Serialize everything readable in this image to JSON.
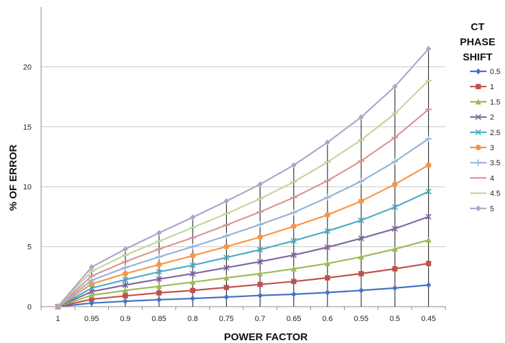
{
  "chart_data": {
    "type": "line",
    "xlabel": "POWER FACTOR",
    "ylabel": "% OF ERROR",
    "ylim": [
      0,
      25
    ],
    "yticks": [
      0,
      5,
      10,
      15,
      20
    ],
    "grid": "horizontal",
    "legend_position": "right",
    "legend_title": [
      "CT",
      "PHASE",
      "SHIFT"
    ],
    "categories": [
      "1",
      "0.95",
      "0.9",
      "0.85",
      "0.8",
      "0.75",
      "0.7",
      "0.65",
      "0.6",
      "0.55",
      "0.5",
      "0.45"
    ],
    "series": [
      {
        "name": "0.5",
        "color": "#4472C4",
        "marker": "diamond",
        "values": [
          0,
          0.3,
          0.45,
          0.58,
          0.68,
          0.8,
          0.93,
          1.03,
          1.18,
          1.35,
          1.55,
          1.8
        ]
      },
      {
        "name": "1",
        "color": "#C0504D",
        "marker": "square",
        "values": [
          0,
          0.62,
          0.9,
          1.15,
          1.35,
          1.6,
          1.85,
          2.1,
          2.4,
          2.75,
          3.15,
          3.6
        ]
      },
      {
        "name": "1.5",
        "color": "#9BBB59",
        "marker": "triangle",
        "values": [
          0,
          0.95,
          1.35,
          1.7,
          2.05,
          2.4,
          2.75,
          3.15,
          3.6,
          4.15,
          4.8,
          5.55
        ]
      },
      {
        "name": "2",
        "color": "#8064A2",
        "marker": "x",
        "values": [
          0,
          1.25,
          1.8,
          2.3,
          2.75,
          3.25,
          3.75,
          4.3,
          4.95,
          5.7,
          6.5,
          7.5
        ]
      },
      {
        "name": "2.5",
        "color": "#4BACC6",
        "marker": "x",
        "values": [
          0,
          1.55,
          2.25,
          2.9,
          3.45,
          4.1,
          4.75,
          5.5,
          6.3,
          7.2,
          8.3,
          9.6
        ]
      },
      {
        "name": "3",
        "color": "#F79646",
        "marker": "circle",
        "values": [
          0,
          1.9,
          2.75,
          3.5,
          4.25,
          5.0,
          5.8,
          6.7,
          7.65,
          8.8,
          10.2,
          11.8
        ]
      },
      {
        "name": "3.5",
        "color": "#95B3D7",
        "marker": "plus",
        "values": [
          0,
          2.2,
          3.25,
          4.15,
          5.0,
          5.9,
          6.85,
          7.85,
          9.1,
          10.45,
          12.1,
          14.0
        ]
      },
      {
        "name": "4",
        "color": "#D99694",
        "marker": "dash",
        "values": [
          0,
          2.55,
          3.75,
          4.8,
          5.75,
          6.8,
          7.9,
          9.1,
          10.5,
          12.15,
          14.1,
          16.45
        ]
      },
      {
        "name": "4.5",
        "color": "#C3D69B",
        "marker": "dash",
        "values": [
          0,
          2.95,
          4.3,
          5.45,
          6.6,
          7.75,
          9.0,
          10.4,
          12.05,
          13.9,
          16.1,
          18.85
        ]
      },
      {
        "name": "5",
        "color": "#B3A2C7",
        "marker": "diamond",
        "values": [
          0,
          3.3,
          4.8,
          6.15,
          7.45,
          8.8,
          10.2,
          11.8,
          13.7,
          15.8,
          18.35,
          21.5
        ]
      }
    ]
  }
}
